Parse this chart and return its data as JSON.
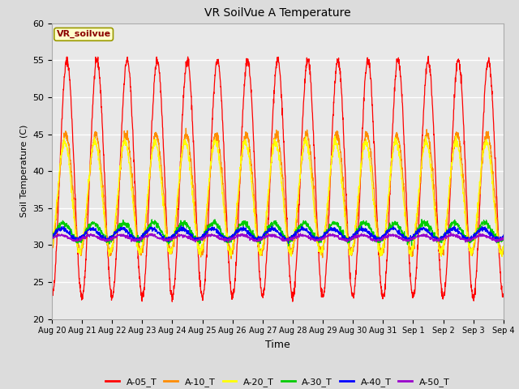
{
  "title": "VR SoilVue A Temperature",
  "xlabel": "Time",
  "ylabel": "Soil Temperature (C)",
  "ylim": [
    20,
    60
  ],
  "background_color": "#dcdcdc",
  "plot_bg_color": "#e8e8e8",
  "annotation_text": "VR_soilvue",
  "annotation_color": "#8b0000",
  "annotation_bg": "#ffffcc",
  "series": [
    {
      "label": "A-05_T",
      "color": "#ff0000",
      "amplitude": 16.0,
      "mean": 39.0,
      "phase": -1.5707963,
      "noise": 0.3
    },
    {
      "label": "A-10_T",
      "color": "#ff8c00",
      "amplitude": 8.0,
      "mean": 37.0,
      "phase": -1.3,
      "noise": 0.3
    },
    {
      "label": "A-20_T",
      "color": "#ffff00",
      "amplitude": 7.5,
      "mean": 36.5,
      "phase": -1.1,
      "noise": 0.3
    },
    {
      "label": "A-30_T",
      "color": "#00cc00",
      "amplitude": 1.2,
      "mean": 31.8,
      "phase": -0.8,
      "noise": 0.2
    },
    {
      "label": "A-40_T",
      "color": "#0000ff",
      "amplitude": 0.7,
      "mean": 31.5,
      "phase": -0.5,
      "noise": 0.15
    },
    {
      "label": "A-50_T",
      "color": "#9900cc",
      "amplitude": 0.35,
      "mean": 31.0,
      "phase": -0.3,
      "noise": 0.1
    }
  ],
  "x_tick_labels": [
    "Aug 20",
    "Aug 21",
    "Aug 22",
    "Aug 23",
    "Aug 24",
    "Aug 25",
    "Aug 26",
    "Aug 27",
    "Aug 28",
    "Aug 29",
    "Aug 30",
    "Aug 31",
    "Sep 1",
    "Sep 2",
    "Sep 3",
    "Sep 4"
  ],
  "legend_colors": [
    "#ff0000",
    "#ff8c00",
    "#ffff00",
    "#00cc00",
    "#0000ff",
    "#9900cc"
  ],
  "legend_labels": [
    "A-05_T",
    "A-10_T",
    "A-20_T",
    "A-30_T",
    "A-40_T",
    "A-50_T"
  ],
  "yticks": [
    20,
    25,
    30,
    35,
    40,
    45,
    50,
    55,
    60
  ]
}
